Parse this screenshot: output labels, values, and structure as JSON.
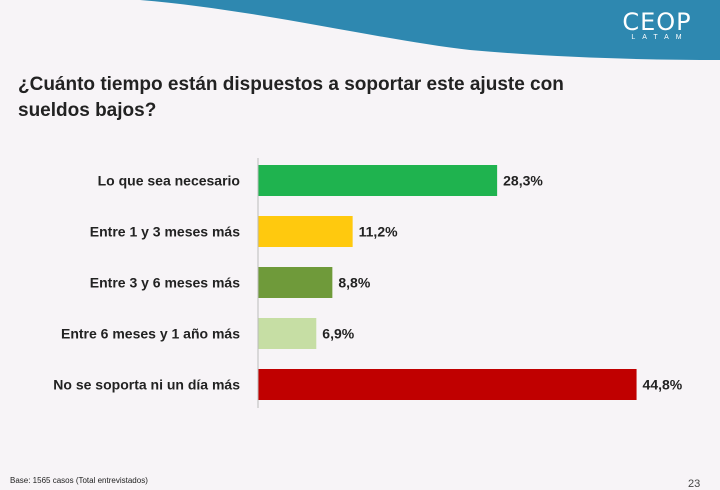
{
  "header": {
    "logo_main": "CEOP",
    "logo_sub": "LATAM"
  },
  "title": "¿Cuánto tiempo están dispuestos a soportar este ajuste con sueldos bajos?",
  "footer": {
    "base": "Base:  1565 casos (Total entrevistados)",
    "page": "23"
  },
  "colors": {
    "header": "#2e88b0"
  },
  "chart_data": {
    "type": "bar",
    "orientation": "horizontal",
    "title": "¿Cuánto tiempo están dispuestos a soportar este ajuste con sueldos bajos?",
    "categories": [
      "Lo que sea necesario",
      "Entre 1 y 3 meses más",
      "Entre 3 y 6 meses más",
      "Entre 6 meses y 1 año más",
      "No se soporta ni un día más"
    ],
    "values": [
      28.3,
      11.2,
      8.8,
      6.9,
      44.8
    ],
    "labels": [
      "28,3%",
      "11,2%",
      "8,8%",
      "6,9%",
      "44,8%"
    ],
    "colors": [
      "#1fb34f",
      "#ffc90e",
      "#6f9a3a",
      "#c6dea4",
      "#c00000"
    ],
    "xlim": [
      0,
      50
    ],
    "xlabel": "",
    "ylabel": ""
  }
}
